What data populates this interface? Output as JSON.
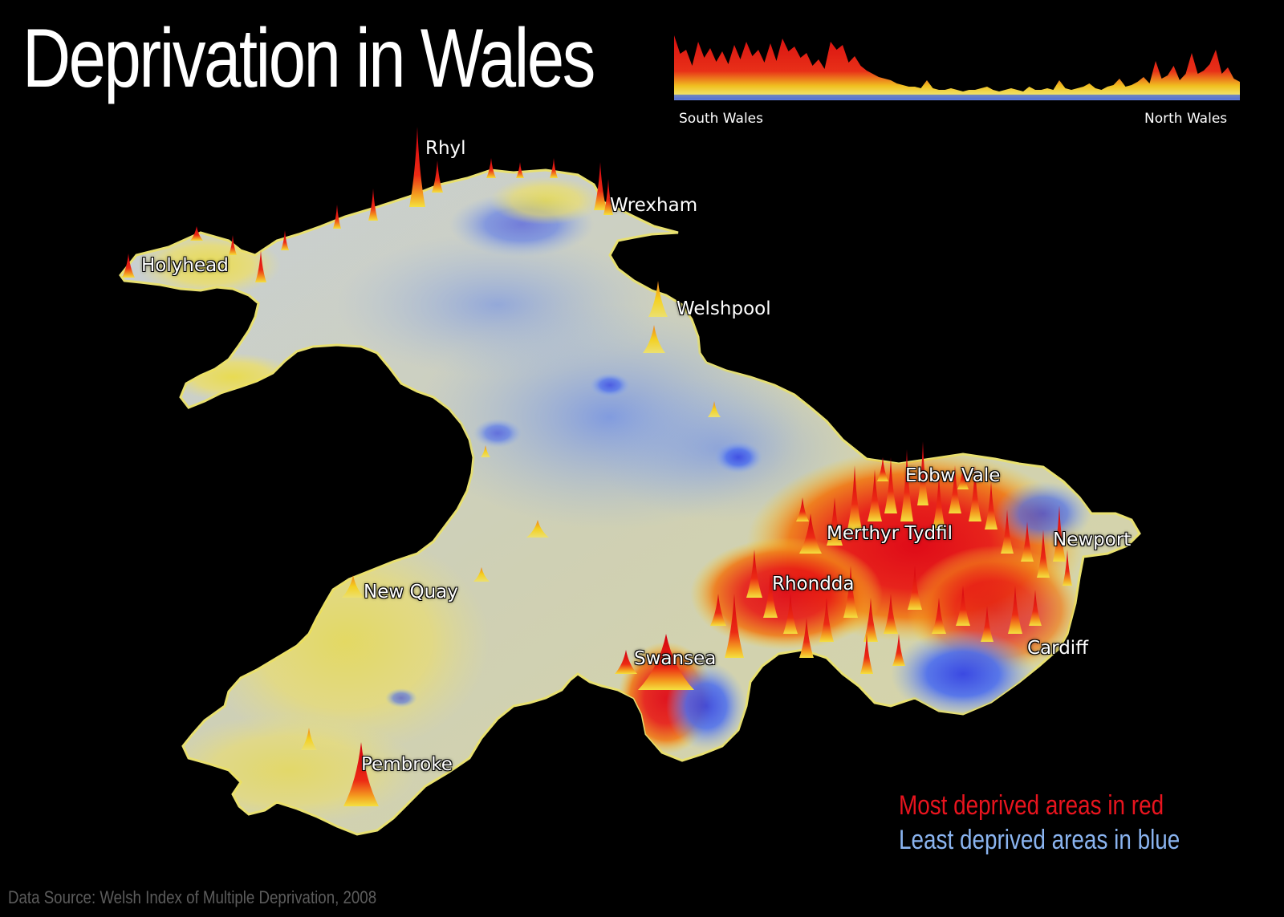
{
  "title": "Deprivation in Wales",
  "profile": {
    "left_label": "South Wales",
    "right_label": "North Wales"
  },
  "places": [
    {
      "name": "Rhyl"
    },
    {
      "name": "Wrexham"
    },
    {
      "name": "Holyhead"
    },
    {
      "name": "Welshpool"
    },
    {
      "name": "Ebbw Vale"
    },
    {
      "name": "Merthyr Tydfil"
    },
    {
      "name": "Newport"
    },
    {
      "name": "Rhondda"
    },
    {
      "name": "New Quay"
    },
    {
      "name": "Swansea"
    },
    {
      "name": "Cardiff"
    },
    {
      "name": "Pembroke"
    }
  ],
  "legend": {
    "most": "Most deprived areas in red",
    "least": "Least deprived areas in blue",
    "most_color": "#e8141e",
    "least_color": "#8ab4f0"
  },
  "source": "Data Source: Welsh Index of Multiple Deprivation, 2008"
}
